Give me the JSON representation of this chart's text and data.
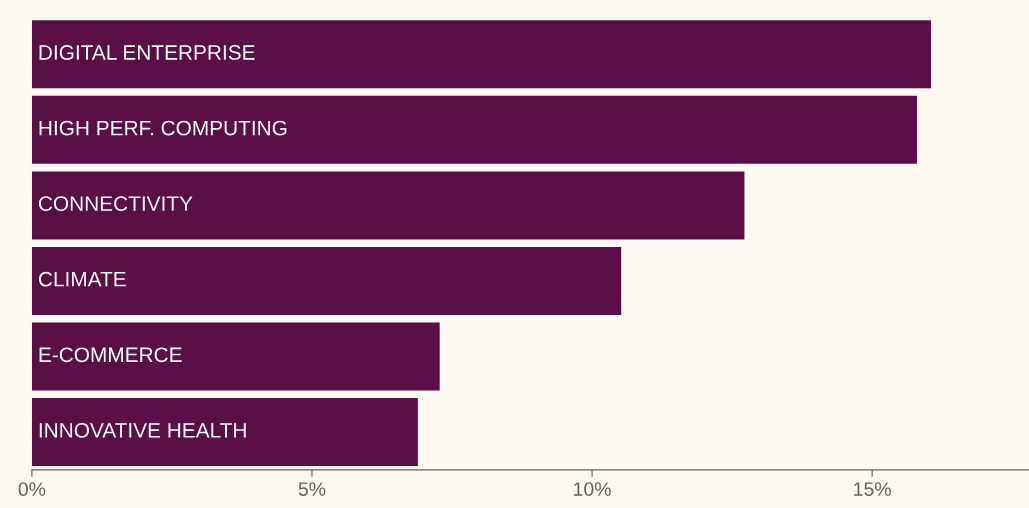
{
  "chart_data": {
    "type": "bar",
    "orientation": "horizontal",
    "categories": [
      "DIGITAL ENTERPRISE",
      "HIGH PERF. COMPUTING",
      "CONNECTIVITY",
      "CLIMATE",
      "E-COMMERCE",
      "INNOVATIVE HEALTH"
    ],
    "values": [
      16.05,
      15.8,
      12.72,
      10.52,
      7.28,
      6.89
    ],
    "color": "#5a0f48",
    "xlim": [
      0,
      17.8
    ],
    "xticks": [
      {
        "value": 0,
        "label": "0%"
      },
      {
        "value": 5,
        "label": "5%"
      },
      {
        "value": 10,
        "label": "10%"
      },
      {
        "value": 15,
        "label": "15%"
      }
    ],
    "grid": false,
    "legend": false
  }
}
